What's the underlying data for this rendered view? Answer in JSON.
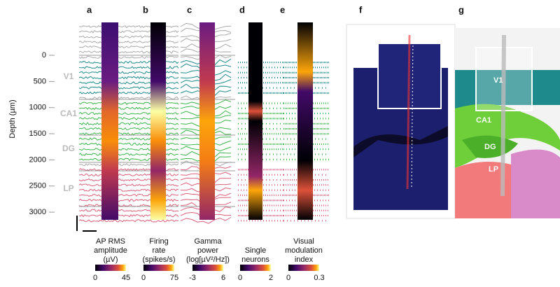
{
  "panels": [
    "a",
    "b",
    "c",
    "d",
    "e",
    "f",
    "g"
  ],
  "depth_axis": {
    "label": "Depth (µm)",
    "ticks": [
      0,
      500,
      1000,
      1500,
      2000,
      2500,
      3000
    ]
  },
  "regions": [
    "V1",
    "CA1",
    "DG",
    "LP"
  ],
  "colorbars": [
    {
      "label": [
        "AP RMS",
        "amplitude",
        "(µV)"
      ],
      "min": 0,
      "max": 45
    },
    {
      "label": [
        "Firing",
        "rate",
        "(spikes/s)"
      ],
      "min": 0,
      "max": 75
    },
    {
      "label": [
        "Gamma",
        "power",
        "(log[µV²/Hz])"
      ],
      "min": -3,
      "max": 6
    },
    {
      "label": [
        "Single",
        "neurons"
      ],
      "min": 0,
      "max": 2
    },
    {
      "label": [
        "Visual",
        "modulation",
        "index"
      ],
      "min": 0,
      "max": 0.3
    }
  ],
  "atlas": {
    "labels": [
      "V1",
      "CA1",
      "DG",
      "LP"
    ]
  }
}
